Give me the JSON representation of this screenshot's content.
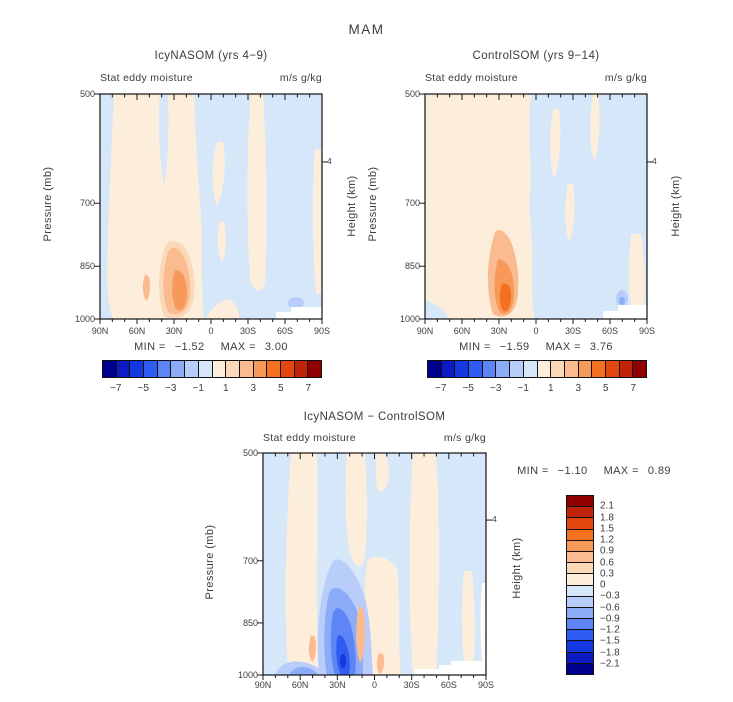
{
  "figure": {
    "title": "MAM"
  },
  "colors": {
    "text": "#3c3c3c",
    "axis": "#111111",
    "background": "#ffffff"
  },
  "palette": {
    "diverging16": [
      "#00008F",
      "#0C1BC4",
      "#1338E0",
      "#2F5DF3",
      "#5E85F6",
      "#8CACF8",
      "#B8CDFA",
      "#D6E7FA",
      "#FDEEDC",
      "#FBD9B8",
      "#F9BB8F",
      "#F79A59",
      "#F3711F",
      "#E1470F",
      "#C02308",
      "#900000"
    ]
  },
  "panels": [
    {
      "title": "IcyNASOM (yrs 4−9)",
      "subtitle_left": "Stat eddy moisture",
      "subtitle_right": "m/s g/kg",
      "ylabel_left": "Pressure (mb)",
      "ylabel_right": "Height (km)",
      "yticks": [
        "500",
        "700",
        "850",
        "1000"
      ],
      "ytick_right": "4",
      "xticks": [
        "90N",
        "60N",
        "30N",
        "0",
        "30S",
        "60S",
        "90S"
      ],
      "stats": {
        "min_label": "MIN =",
        "min_value": "−1.52",
        "max_label": "MAX =",
        "max_value": "3.00"
      },
      "colorbar_labels": [
        "−7",
        "−5",
        "−3",
        "−1",
        "1",
        "3",
        "5",
        "7"
      ]
    },
    {
      "title": "ControlSOM (yrs 9−14)",
      "subtitle_left": "Stat eddy moisture",
      "subtitle_right": "m/s g/kg",
      "ylabel_left": "Pressure (mb)",
      "ylabel_right": "Height (km)",
      "yticks": [
        "500",
        "700",
        "850",
        "1000"
      ],
      "ytick_right": "4",
      "xticks": [
        "90N",
        "60N",
        "30N",
        "0",
        "30S",
        "60S",
        "90S"
      ],
      "stats": {
        "min_label": "MIN =",
        "min_value": "−1.59",
        "max_label": "MAX =",
        "max_value": "3.76"
      },
      "colorbar_labels": [
        "−7",
        "−5",
        "−3",
        "−1",
        "1",
        "3",
        "5",
        "7"
      ]
    },
    {
      "title": "IcyNASOM − ControlSOM",
      "subtitle_left": "Stat eddy moisture",
      "subtitle_right": "m/s g/kg",
      "ylabel_left": "Pressure (mb)",
      "ylabel_right": "Height (km)",
      "yticks": [
        "500",
        "700",
        "850",
        "1000"
      ],
      "ytick_right": "4",
      "xticks": [
        "90N",
        "60N",
        "30N",
        "0",
        "30S",
        "60S",
        "90S"
      ],
      "stats": {
        "min_label": "MIN =",
        "min_value": "−1.10",
        "max_label": "MAX =",
        "max_value": "0.89"
      },
      "colorbar_labels": [
        "2.1",
        "1.8",
        "1.5",
        "1.2",
        "0.9",
        "0.6",
        "0.3",
        "0",
        "−0.3",
        "−0.6",
        "−0.9",
        "−1.2",
        "−1.5",
        "−1.8",
        "−2.1"
      ]
    }
  ],
  "chart_data": [
    {
      "type": "heatmap",
      "title": "IcyNASOM (yrs 4−9)",
      "quantity": "Stat eddy moisture",
      "units": "m/s g/kg",
      "season": "MAM",
      "x_ticks": [
        "90N",
        "60N",
        "30N",
        "0",
        "30S",
        "60S",
        "90S"
      ],
      "x_range_deg": [
        90,
        -90
      ],
      "y_left_label": "Pressure (mb)",
      "y_left_ticks": [
        500,
        700,
        850,
        1000
      ],
      "y_scale": "log, inverted (500 top, 1000 bottom)",
      "y_right_label": "Height (km)",
      "y_right_ticks": [
        4
      ],
      "contour_levels": [
        -7,
        -6,
        -5,
        -4,
        -3,
        -2,
        -1,
        0,
        1,
        2,
        3,
        4,
        5,
        6,
        7
      ],
      "colorbar_ticks": [
        -7,
        -5,
        -3,
        -1,
        1,
        3,
        5,
        7
      ],
      "min": -1.52,
      "max": 3.0,
      "features": [
        {
          "note": "weak negative (0 to −1) light blue over most of section, especially SH"
        },
        {
          "note": "broad weak positive (0–1) band from 90N to ~20N and near 60S"
        },
        {
          "lat": "30N",
          "pressure_mb": 900,
          "value": 3.0,
          "note": "positive maximum (1–3 shading)"
        },
        {
          "lat": "60S",
          "pressure_mb": 950,
          "value": -1.52,
          "note": "negative minimum, small −1 patch"
        },
        {
          "note": "white terrain cutout at bottom-right (Antarctica)"
        }
      ]
    },
    {
      "type": "heatmap",
      "title": "ControlSOM (yrs 9−14)",
      "quantity": "Stat eddy moisture",
      "units": "m/s g/kg",
      "season": "MAM",
      "x_ticks": [
        "90N",
        "60N",
        "30N",
        "0",
        "30S",
        "60S",
        "90S"
      ],
      "x_range_deg": [
        90,
        -90
      ],
      "y_left_label": "Pressure (mb)",
      "y_left_ticks": [
        500,
        700,
        850,
        1000
      ],
      "y_scale": "log, inverted (500 top, 1000 bottom)",
      "y_right_label": "Height (km)",
      "y_right_ticks": [
        4
      ],
      "contour_levels": [
        -7,
        -6,
        -5,
        -4,
        -3,
        -2,
        -1,
        0,
        1,
        2,
        3,
        4,
        5,
        6,
        7
      ],
      "colorbar_ticks": [
        -7,
        -5,
        -3,
        -1,
        1,
        3,
        5,
        7
      ],
      "min": -1.59,
      "max": 3.76,
      "features": [
        {
          "note": "positive (0–1) shading covers most of NH half of section"
        },
        {
          "lat": "30N",
          "pressure_mb": 925,
          "value": 3.76,
          "note": "strong positive maximum, nested 1/2/3 contours"
        },
        {
          "lat": "60S",
          "pressure_mb": 975,
          "value": -1.59,
          "note": "negative minimum patch"
        },
        {
          "note": "white terrain cutout at bottom-right (Antarctica)"
        }
      ]
    },
    {
      "type": "heatmap",
      "title": "IcyNASOM − ControlSOM (difference)",
      "quantity": "Stat eddy moisture",
      "units": "m/s g/kg",
      "season": "MAM",
      "x_ticks": [
        "90N",
        "60N",
        "30N",
        "0",
        "30S",
        "60S",
        "90S"
      ],
      "x_range_deg": [
        90,
        -90
      ],
      "y_left_label": "Pressure (mb)",
      "y_left_ticks": [
        500,
        700,
        850,
        1000
      ],
      "y_scale": "log, inverted (500 top, 1000 bottom)",
      "y_right_label": "Height (km)",
      "y_right_ticks": [
        4
      ],
      "contour_levels": [
        -2.1,
        -1.8,
        -1.5,
        -1.2,
        -0.9,
        -0.6,
        -0.3,
        0,
        0.3,
        0.6,
        0.9,
        1.2,
        1.5,
        1.8,
        2.1
      ],
      "colorbar_ticks": [
        2.1,
        1.8,
        1.5,
        1.2,
        0.9,
        0.6,
        0.3,
        0,
        -0.3,
        -0.6,
        -0.9,
        -1.2,
        -1.5,
        -1.8,
        -2.1
      ],
      "colorbar_orientation": "vertical, positive (red) at top",
      "min": -1.1,
      "max": 0.89,
      "features": [
        {
          "lat": "30N",
          "pressure_mb": 900,
          "value": -1.1,
          "note": "negative minimum, nested blue contours down to −1.2 bin"
        },
        {
          "lat": "30N",
          "pressure_mb": 950,
          "value": 0.89,
          "note": "small positive maxima (salmon spots) flanking the blue blob"
        },
        {
          "note": "alternating weak ±0.3 vertical bands across all latitudes"
        },
        {
          "note": "white terrain cutout at bottom-right (Antarctica)"
        }
      ]
    }
  ]
}
